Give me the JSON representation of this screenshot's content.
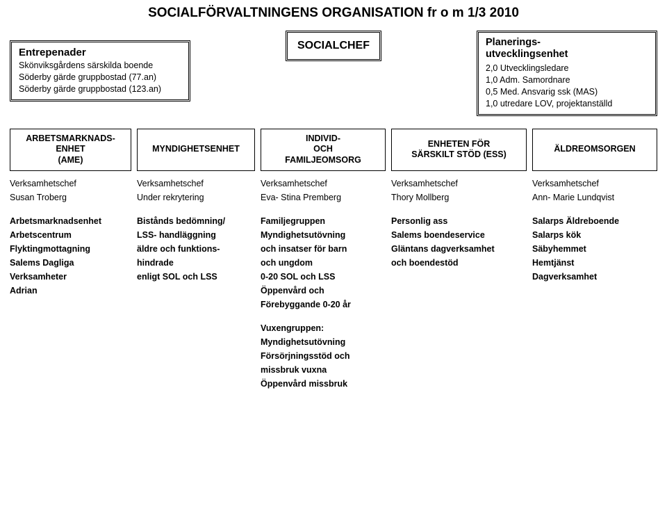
{
  "title": "SOCIALFÖRVALTNINGENS ORGANISATION fr o m 1/3 2010",
  "entreprenader": {
    "heading": "Entrepenader",
    "lines": [
      "Skönviksgårdens särskilda boende",
      "Söderby gärde gruppbostad (77.an)",
      "Söderby gärde gruppbostad (123.an)"
    ]
  },
  "socialchef": "SOCIALCHEF",
  "planering": {
    "heading_l1": "Planerings-",
    "heading_l2": "utvecklingsenhet",
    "lines": [
      "2,0 Utvecklingsledare",
      "1,0 Adm. Samordnare",
      "0,5 Med. Ansvarig ssk (MAS)",
      "1,0 utredare LOV, projektanställd"
    ]
  },
  "units": [
    {
      "l1": "ARBETSMARKNADS-",
      "l2": "ENHET",
      "l3": "(AME)"
    },
    {
      "l1": "MYNDIGHETSENHET",
      "l2": "",
      "l3": ""
    },
    {
      "l1": "INDIVID-",
      "l2": "OCH",
      "l3": "FAMILJEOMSORG"
    },
    {
      "l1": "ENHETEN FÖR",
      "l2": "SÄRSKILT STÖD (ESS)",
      "l3": ""
    },
    {
      "l1": "ÄLDREOMSORGEN",
      "l2": "",
      "l3": ""
    }
  ],
  "chef_label": "Verksamhetschef",
  "chefs": [
    "Susan Troberg",
    "Under rekrytering",
    "Eva- Stina Premberg",
    "Thory Mollberg",
    "Ann- Marie Lundqvist"
  ],
  "details": {
    "col0": [
      "Arbetsmarknadsenhet",
      "Arbetscentrum",
      "Flyktingmottagning",
      "Salems Dagliga",
      "Verksamheter",
      "Adrian"
    ],
    "col1": [
      "Bistånds bedömning/",
      "LSS- handläggning",
      "äldre och funktions-",
      " hindrade",
      "enligt SOL och LSS"
    ],
    "col2": [
      "Familjegruppen",
      "Myndighetsutövning",
      "och insatser för barn",
      "och ungdom",
      "0-20 SOL och LSS",
      "Öppenvård och",
      "Förebyggande 0-20 år"
    ],
    "col3": [
      "Personlig ass",
      "Salems boendeservice",
      "Gläntans dagverksamhet",
      "och boendestöd"
    ],
    "col4": [
      "Salarps Äldreboende",
      "Salarps kök",
      "Säbyhemmet",
      "Hemtjänst",
      "Dagverksamhet"
    ]
  },
  "vuxen": [
    "Vuxengruppen:",
    "Myndighetsutövning",
    "Försörjningsstöd och",
    "missbruk vuxna",
    "Öppenvård missbruk"
  ]
}
